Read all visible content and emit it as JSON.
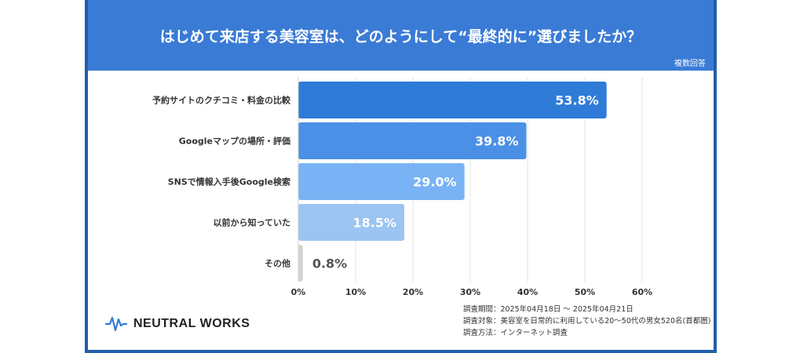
{
  "header": {
    "title": "はじめて来店する美容室は、どのようにして“最終的に”選びましたか？",
    "note": "複数回答"
  },
  "chart_data": {
    "type": "bar",
    "orientation": "horizontal",
    "categories": [
      "予約サイトのクチコミ・料金の比較",
      "Googleマップの場所・評価",
      "SNSで情報入手後Google検索",
      "以前から知っていた",
      "その他"
    ],
    "values": [
      53.8,
      39.8,
      29.0,
      18.5,
      0.8
    ],
    "value_labels": [
      "53.8%",
      "39.8%",
      "29.0%",
      "18.5%",
      "0.8%"
    ],
    "colors": [
      "#2f7bd8",
      "#4a90e6",
      "#79b3f5",
      "#9cc4f2",
      "#d3d3d3"
    ],
    "xlim": [
      0,
      60
    ],
    "x_ticks": [
      "0%",
      "10%",
      "20%",
      "30%",
      "40%",
      "50%",
      "60%"
    ],
    "grid": true
  },
  "footer": {
    "logo_text": "NEUTRAL WORKS",
    "survey_lines": [
      "調査期間：2025年04月18日 〜 2025年04月21日",
      "調査対象：美容室を日常的に利用している20〜50代の男女520名(首都圏)",
      "調査方法：インターネット調査"
    ]
  }
}
